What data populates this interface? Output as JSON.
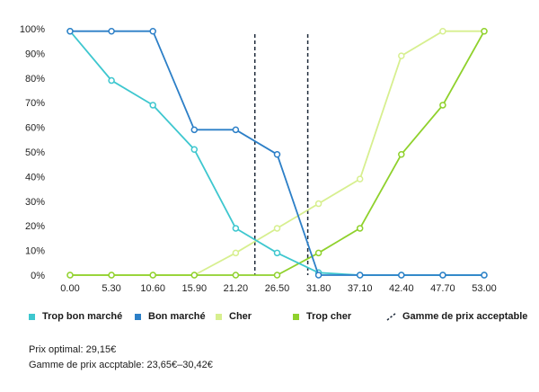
{
  "chart_data": {
    "type": "line",
    "x": [
      "0.00",
      "5.30",
      "10.60",
      "15.90",
      "21.20",
      "26.50",
      "31.80",
      "37.10",
      "42.40",
      "47.70",
      "53.00"
    ],
    "y_ticks": [
      "0%",
      "10%",
      "20%",
      "30%",
      "40%",
      "50%",
      "60%",
      "70%",
      "80%",
      "90%",
      "100%"
    ],
    "ylim": [
      0,
      100
    ],
    "xlim": [
      0,
      53
    ],
    "grid": false,
    "legend_position": "bottom",
    "series": [
      {
        "name": "Trop bon marché",
        "color": "#3ec7cf",
        "values": [
          99,
          79,
          69,
          51,
          19,
          9,
          1,
          0,
          0,
          0,
          0
        ]
      },
      {
        "name": "Bon marché",
        "color": "#2c7fc7",
        "values": [
          99,
          99,
          99,
          59,
          59,
          49,
          0,
          0,
          0,
          0,
          0
        ]
      },
      {
        "name": "Cher",
        "color": "#d7ef8f",
        "values": [
          0,
          0,
          0,
          0,
          9,
          19,
          29,
          39,
          89,
          99,
          99
        ]
      },
      {
        "name": "Trop cher",
        "color": "#8fd12c",
        "values": [
          0,
          0,
          0,
          0,
          0,
          0,
          9,
          19,
          49,
          69,
          99
        ]
      }
    ],
    "reference_lines": {
      "name": "Gamme de prix acceptable",
      "color": "#1e2a3a",
      "x_values": [
        23.65,
        30.42
      ]
    }
  },
  "notes": {
    "optimal": "Prix optimal: 29,15€",
    "range": "Gamme de prix accptable: 23,65€–30,42€"
  }
}
